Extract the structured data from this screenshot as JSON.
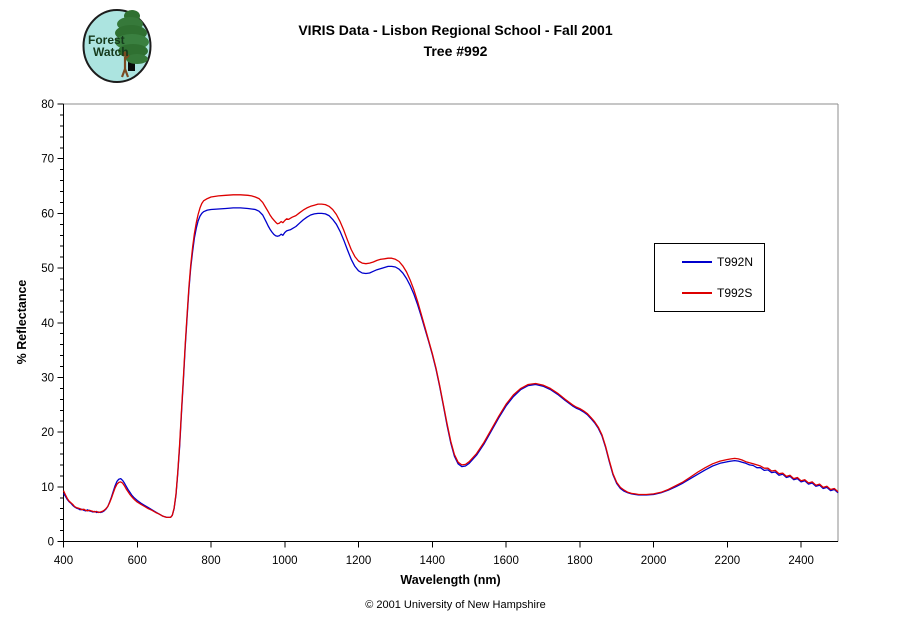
{
  "page": {
    "title_line1": "VIRIS Data - Lisbon Regional School - Fall 2001",
    "title_line2": "Tree #992",
    "footer": "© 2001 University of New Hampshire"
  },
  "logo": {
    "text_line1": "Forest",
    "text_line2": "Watch",
    "bg_color": "#ace4e0",
    "foliage_color": "#2f7031",
    "text_color": "#153a1c"
  },
  "chart_data": {
    "type": "line",
    "title": "VIRIS Data - Lisbon Regional School - Fall 2001",
    "subtitle": "Tree #992",
    "xlabel": "Wavelength (nm)",
    "ylabel": "% Reflectance",
    "xlim": [
      400,
      2500
    ],
    "ylim": [
      0,
      80
    ],
    "x_ticks": [
      400,
      600,
      800,
      1000,
      1200,
      1400,
      1600,
      1800,
      2000,
      2200,
      2400
    ],
    "y_ticks": [
      0,
      10,
      20,
      30,
      40,
      50,
      60,
      70,
      80
    ],
    "y_minor_step": 2,
    "grid": false,
    "legend_position": "right-center",
    "axis_color": "#000000",
    "border_color": "#8c8c8c",
    "x": [
      400,
      405,
      410,
      415,
      420,
      425,
      430,
      435,
      440,
      445,
      450,
      455,
      460,
      465,
      470,
      475,
      480,
      485,
      490,
      495,
      500,
      505,
      510,
      515,
      520,
      525,
      530,
      535,
      540,
      545,
      550,
      555,
      560,
      565,
      570,
      575,
      580,
      585,
      590,
      595,
      600,
      610,
      620,
      630,
      640,
      650,
      660,
      670,
      680,
      690,
      695,
      700,
      705,
      710,
      715,
      720,
      725,
      730,
      735,
      740,
      745,
      750,
      755,
      760,
      765,
      770,
      775,
      780,
      790,
      800,
      820,
      840,
      860,
      880,
      900,
      910,
      920,
      930,
      940,
      950,
      955,
      960,
      965,
      970,
      975,
      980,
      985,
      990,
      995,
      1000,
      1005,
      1010,
      1015,
      1020,
      1030,
      1040,
      1050,
      1060,
      1070,
      1080,
      1090,
      1100,
      1110,
      1120,
      1130,
      1140,
      1150,
      1160,
      1170,
      1180,
      1190,
      1200,
      1210,
      1220,
      1230,
      1240,
      1250,
      1260,
      1270,
      1280,
      1290,
      1300,
      1310,
      1320,
      1330,
      1340,
      1350,
      1360,
      1370,
      1380,
      1390,
      1400,
      1410,
      1420,
      1430,
      1440,
      1450,
      1460,
      1470,
      1480,
      1490,
      1500,
      1520,
      1540,
      1560,
      1580,
      1600,
      1620,
      1640,
      1660,
      1680,
      1700,
      1720,
      1740,
      1760,
      1780,
      1790,
      1800,
      1810,
      1820,
      1830,
      1840,
      1850,
      1860,
      1870,
      1880,
      1890,
      1900,
      1910,
      1920,
      1930,
      1940,
      1950,
      1960,
      1980,
      2000,
      2020,
      2040,
      2060,
      2080,
      2100,
      2120,
      2140,
      2160,
      2180,
      2200,
      2210,
      2220,
      2230,
      2240,
      2250,
      2260,
      2270,
      2280,
      2290,
      2300,
      2310,
      2320,
      2330,
      2340,
      2350,
      2360,
      2370,
      2380,
      2390,
      2400,
      2410,
      2420,
      2430,
      2440,
      2450,
      2460,
      2470,
      2480,
      2490,
      2500
    ],
    "series": [
      {
        "name": "T992N",
        "color": "#0000cc",
        "values": [
          8.8,
          8.3,
          7.7,
          7.3,
          7.0,
          6.6,
          6.3,
          6.1,
          6.0,
          5.8,
          5.9,
          5.7,
          5.6,
          5.8,
          5.6,
          5.5,
          5.4,
          5.5,
          5.3,
          5.4,
          5.3,
          5.4,
          5.6,
          5.9,
          6.4,
          7.2,
          8.1,
          9.2,
          10.2,
          11.0,
          11.4,
          11.5,
          11.2,
          10.7,
          10.1,
          9.5,
          9.0,
          8.5,
          8.1,
          7.8,
          7.5,
          7.0,
          6.6,
          6.2,
          5.8,
          5.4,
          5.0,
          4.6,
          4.4,
          4.4,
          4.8,
          6.0,
          8.5,
          12.5,
          17.5,
          23.5,
          29.5,
          35.5,
          41.0,
          46.0,
          50.0,
          53.0,
          55.5,
          57.3,
          58.6,
          59.5,
          60.0,
          60.3,
          60.6,
          60.7,
          60.8,
          60.9,
          61.0,
          61.0,
          60.9,
          60.8,
          60.7,
          60.4,
          59.7,
          58.4,
          57.7,
          57.1,
          56.6,
          56.2,
          55.9,
          55.8,
          55.9,
          56.2,
          56.0,
          56.5,
          56.8,
          56.9,
          57.0,
          57.2,
          57.6,
          58.2,
          58.8,
          59.3,
          59.7,
          59.9,
          60.0,
          60.0,
          59.9,
          59.6,
          58.9,
          58.0,
          56.7,
          55.1,
          53.3,
          51.6,
          50.3,
          49.5,
          49.1,
          49.0,
          49.1,
          49.4,
          49.7,
          49.9,
          50.1,
          50.3,
          50.3,
          50.2,
          49.8,
          49.1,
          48.1,
          46.8,
          45.2,
          43.3,
          41.2,
          38.9,
          36.6,
          34.2,
          31.5,
          28.3,
          24.8,
          21.2,
          18.0,
          15.6,
          14.2,
          13.7,
          13.8,
          14.3,
          15.8,
          17.8,
          20.2,
          22.6,
          24.8,
          26.5,
          27.8,
          28.5,
          28.7,
          28.4,
          27.8,
          26.9,
          25.8,
          24.8,
          24.4,
          24.1,
          23.7,
          23.2,
          22.5,
          21.7,
          20.7,
          19.3,
          17.2,
          14.6,
          12.2,
          10.6,
          9.7,
          9.2,
          8.9,
          8.7,
          8.6,
          8.5,
          8.5,
          8.6,
          8.9,
          9.4,
          10.0,
          10.7,
          11.5,
          12.3,
          13.1,
          13.8,
          14.3,
          14.6,
          14.7,
          14.8,
          14.7,
          14.5,
          14.3,
          14.0,
          13.9,
          13.5,
          13.5,
          13.0,
          13.1,
          12.6,
          12.7,
          12.1,
          12.3,
          11.7,
          11.9,
          11.3,
          11.5,
          10.9,
          11.1,
          10.5,
          10.7,
          10.1,
          10.3,
          9.7,
          9.9,
          9.3,
          9.5,
          8.9
        ]
      },
      {
        "name": "T992S",
        "color": "#dd0000",
        "values": [
          9.3,
          8.6,
          7.9,
          7.4,
          7.1,
          6.8,
          6.4,
          6.2,
          6.1,
          6.0,
          5.8,
          5.9,
          5.7,
          5.6,
          5.7,
          5.6,
          5.5,
          5.4,
          5.5,
          5.3,
          5.4,
          5.5,
          5.7,
          6.0,
          6.4,
          7.1,
          7.9,
          8.9,
          9.8,
          10.5,
          10.8,
          10.9,
          10.7,
          10.2,
          9.6,
          9.1,
          8.6,
          8.2,
          7.8,
          7.5,
          7.2,
          6.8,
          6.4,
          6.0,
          5.7,
          5.3,
          5.0,
          4.6,
          4.4,
          4.4,
          4.8,
          6.1,
          8.7,
          12.8,
          18.0,
          24.0,
          30.0,
          36.0,
          41.5,
          46.5,
          50.5,
          53.8,
          56.3,
          58.3,
          59.8,
          61.0,
          61.8,
          62.3,
          62.7,
          63.0,
          63.2,
          63.3,
          63.4,
          63.4,
          63.3,
          63.2,
          63.0,
          62.7,
          62.0,
          60.9,
          60.3,
          59.7,
          59.2,
          58.8,
          58.4,
          58.1,
          58.2,
          58.5,
          58.3,
          58.7,
          59.0,
          58.9,
          59.1,
          59.3,
          59.6,
          60.1,
          60.6,
          61.0,
          61.3,
          61.5,
          61.7,
          61.7,
          61.6,
          61.3,
          60.7,
          59.8,
          58.5,
          56.9,
          55.1,
          53.4,
          52.1,
          51.3,
          50.9,
          50.8,
          50.9,
          51.1,
          51.4,
          51.6,
          51.7,
          51.8,
          51.8,
          51.6,
          51.2,
          50.4,
          49.3,
          47.8,
          46.0,
          43.9,
          41.6,
          39.2,
          36.8,
          34.4,
          31.7,
          28.5,
          25.0,
          21.5,
          18.3,
          15.9,
          14.5,
          14.0,
          14.1,
          14.6,
          16.1,
          18.1,
          20.5,
          22.9,
          25.1,
          26.8,
          28.0,
          28.7,
          28.9,
          28.6,
          28.0,
          27.1,
          26.0,
          25.0,
          24.6,
          24.3,
          23.9,
          23.4,
          22.7,
          21.9,
          20.9,
          19.5,
          17.4,
          14.8,
          12.4,
          10.8,
          9.9,
          9.4,
          9.0,
          8.8,
          8.7,
          8.6,
          8.6,
          8.7,
          9.0,
          9.5,
          10.2,
          10.9,
          11.8,
          12.7,
          13.5,
          14.2,
          14.7,
          15.0,
          15.1,
          15.2,
          15.1,
          14.9,
          14.6,
          14.4,
          14.2,
          14.0,
          13.8,
          13.4,
          13.4,
          12.9,
          13.0,
          12.4,
          12.5,
          11.9,
          12.1,
          11.5,
          11.7,
          11.1,
          11.3,
          10.7,
          10.9,
          10.3,
          10.5,
          9.9,
          10.1,
          9.5,
          9.7,
          9.1
        ]
      }
    ]
  }
}
